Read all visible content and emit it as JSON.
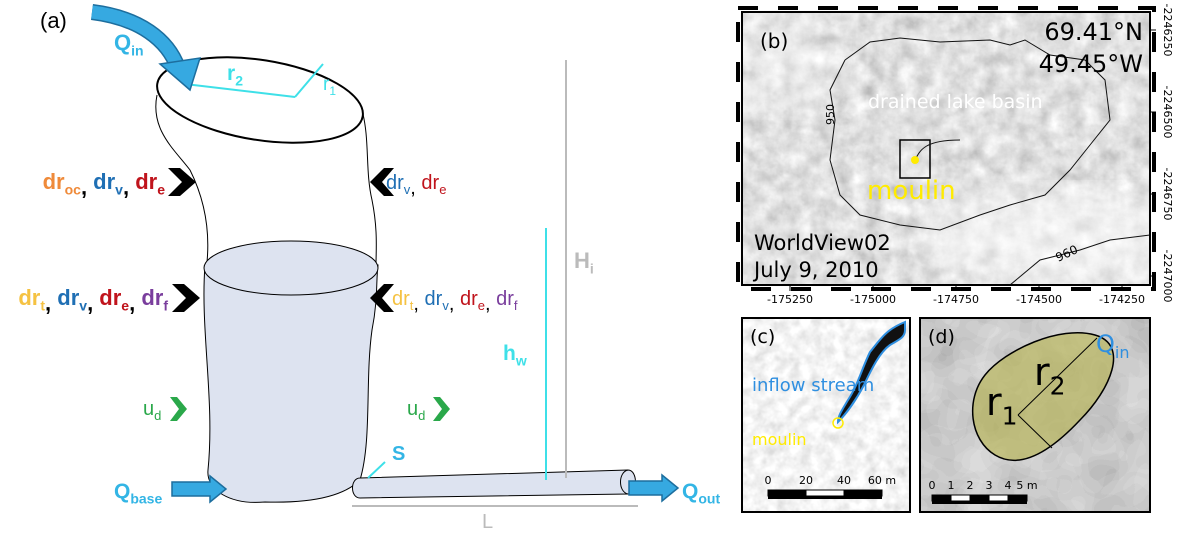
{
  "panel_a": {
    "label": "(a)",
    "q_in": {
      "main": "Q",
      "sub": "in"
    },
    "r2": {
      "main": "r",
      "sub": "2"
    },
    "r1": {
      "main": "r",
      "sub": "1"
    },
    "sep": ", ",
    "left_upper": [
      {
        "main": "dr",
        "sub": "oc",
        "color": "#ef8a3a"
      },
      {
        "main": "dr",
        "sub": "v",
        "color": "#1f6fb4"
      },
      {
        "main": "dr",
        "sub": "e",
        "color": "#c0141c"
      }
    ],
    "right_upper": [
      {
        "main": "dr",
        "sub": "v",
        "color": "#1f6fb4"
      },
      {
        "main": "dr",
        "sub": "e",
        "color": "#c0141c"
      }
    ],
    "left_lower": [
      {
        "main": "dr",
        "sub": "t",
        "color": "#f5c242"
      },
      {
        "main": "dr",
        "sub": "v",
        "color": "#1f6fb4"
      },
      {
        "main": "dr",
        "sub": "e",
        "color": "#c0141c"
      },
      {
        "main": "dr",
        "sub": "f",
        "color": "#7a3e9d"
      }
    ],
    "right_lower": [
      {
        "main": "dr",
        "sub": "t",
        "color": "#f5c242"
      },
      {
        "main": "dr",
        "sub": "v",
        "color": "#1f6fb4"
      },
      {
        "main": "dr",
        "sub": "e",
        "color": "#c0141c"
      },
      {
        "main": "dr",
        "sub": "f",
        "color": "#7a3e9d"
      }
    ],
    "u_d_left": {
      "main": "u",
      "sub": "d",
      "color": "#2aa84a"
    },
    "u_d_right": {
      "main": "u",
      "sub": "d",
      "color": "#2aa84a"
    },
    "h_i": {
      "main": "H",
      "sub": "i"
    },
    "h_w": {
      "main": "h",
      "sub": "w"
    },
    "s": "S",
    "q_base": {
      "main": "Q",
      "sub": "base"
    },
    "q_out": {
      "main": "Q",
      "sub": "out"
    },
    "l": "L"
  },
  "panel_b": {
    "label": "(b)",
    "lat": "69.41°N",
    "lon": "49.45°W",
    "basin": "drained lake basin",
    "contour_950": "950",
    "contour_960": "960",
    "moulin": "moulin",
    "sensor": "WorldView02",
    "date": "July 9, 2010",
    "x_ticks": [
      "-175250",
      "-175000",
      "-174750",
      "-174500",
      "-174250"
    ],
    "y_ticks": [
      "-2246250",
      "-2246500",
      "-2246750",
      "-2247000"
    ]
  },
  "panel_c": {
    "label": "(c)",
    "stream": "inflow stream",
    "moulin": "moulin",
    "scale": [
      "0",
      "20",
      "40",
      "60 m"
    ]
  },
  "panel_d": {
    "label": "(d)",
    "r1": {
      "main": "r",
      "sub": "1"
    },
    "r2": {
      "main": "r",
      "sub": "2"
    },
    "q_in": {
      "main": "Q",
      "sub": "in"
    },
    "scale": [
      "0",
      "1",
      "2",
      "3",
      "4",
      "5 m"
    ]
  }
}
